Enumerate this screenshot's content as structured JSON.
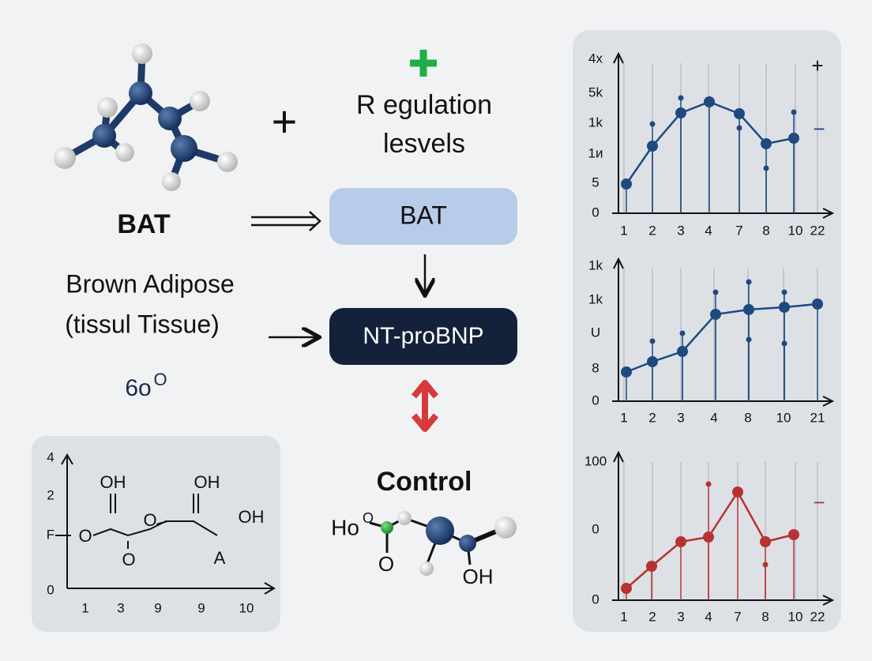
{
  "top_plus": "+",
  "regulation": [
    "R egulation",
    "lesvels"
  ],
  "left": {
    "bat": "BAT",
    "name": [
      "Brown Adipose",
      "(tissul Tissue)"
    ],
    "code": "6o",
    "code_sup": "O"
  },
  "nodes": [
    "BAT",
    "NT-proBNP"
  ],
  "control": "Control",
  "control_molecule": [
    "Ho",
    "O",
    "O",
    "OH"
  ],
  "left_chart": {
    "yticks": [
      "4",
      "2",
      "F",
      "0"
    ],
    "xticks": [
      "1",
      "3",
      "9",
      "9",
      "10"
    ],
    "labels": [
      "OH",
      "O",
      "O",
      "O",
      "OH",
      "OH",
      "A"
    ]
  },
  "charts": [
    {
      "yticks": [
        "4x",
        "5k",
        "1k",
        "1и",
        "5",
        "0"
      ],
      "xticks": [
        "1",
        "2",
        "3",
        "4",
        "7",
        "8",
        "10",
        "22"
      ],
      "legend": [
        "+",
        "−"
      ]
    },
    {
      "yticks": [
        "1k",
        "1k",
        "U",
        "8",
        "0"
      ],
      "xticks": [
        "1",
        "2",
        "3",
        "4",
        "8",
        "10",
        "21"
      ]
    },
    {
      "yticks": [
        "100",
        "0",
        "0"
      ],
      "xticks": [
        "1",
        "2",
        "3",
        "4",
        "7",
        "8",
        "10",
        "22"
      ],
      "legend": [
        "−"
      ]
    }
  ]
}
